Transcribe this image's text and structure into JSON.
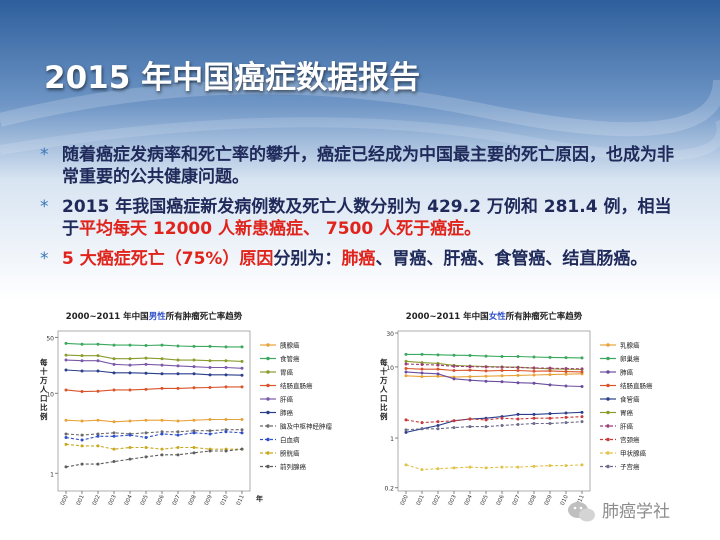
{
  "slide": {
    "title": "2015 年中国癌症数据报告",
    "bullets": [
      {
        "star": "*",
        "segments": [
          {
            "text": "随着癌症发病率和死亡率的攀升，癌症已经成为中国最主要的死亡原因，也成为非常重要的公共健康问题。",
            "red": false
          }
        ]
      },
      {
        "star": "*",
        "segments": [
          {
            "text": "2015 年我国癌症新发病例数及死亡人数分别为 429.2 万例和 281.4 例，相当于",
            "red": false
          },
          {
            "text": "平均每天 12000 人新患癌症、 7500 人死于癌症。",
            "red": true
          }
        ]
      },
      {
        "star": "*",
        "segments": [
          {
            "text": "5 大癌症死亡（75%）原因",
            "red": true
          },
          {
            "text": "分别为：",
            "red": false
          },
          {
            "text": "肺癌",
            "red": true
          },
          {
            "text": "、胃癌、肝癌、食管癌、结直肠癌。",
            "red": false
          }
        ]
      }
    ]
  },
  "watermark": {
    "text": "肺癌学社"
  },
  "colors": {
    "bg_top": "#2e5f9c",
    "bg_bottom": "#ffffff",
    "text": "#1f2a5a",
    "accent": "#e0231b",
    "star": "#3a76b8"
  },
  "chart_data": [
    {
      "type": "line",
      "title_pre": "2000~2011 年中国",
      "title_em": "男性",
      "title_post": "所有肿瘤死亡率趋势",
      "ylabel": "每十万人口比例",
      "xlabel": "年",
      "y_scale": "log",
      "yticks": [
        1,
        10,
        50
      ],
      "ylim": [
        0.6,
        60
      ],
      "x": [
        "2000",
        "2001",
        "2002",
        "2003",
        "2004",
        "2005",
        "2006",
        "2007",
        "2008",
        "2009",
        "2010",
        "2011"
      ],
      "series": [
        {
          "name": "胰腺癌",
          "color": "#e8a23a",
          "dash": false,
          "values": [
            4.6,
            4.5,
            4.6,
            4.4,
            4.5,
            4.6,
            4.6,
            4.5,
            4.6,
            4.7,
            4.7,
            4.7
          ]
        },
        {
          "name": "食管癌",
          "color": "#3aa85e",
          "dash": false,
          "values": [
            42,
            41,
            41,
            40,
            40,
            39.5,
            40,
            39,
            38.5,
            38.5,
            38,
            38
          ]
        },
        {
          "name": "胃癌",
          "color": "#8a9c2e",
          "dash": false,
          "values": [
            30,
            29.5,
            29.5,
            27,
            27,
            27.5,
            27,
            26,
            26,
            25.5,
            25.5,
            25
          ]
        },
        {
          "name": "结肠直肠癌",
          "color": "#d9542b",
          "dash": false,
          "values": [
            11,
            10.5,
            10.6,
            11,
            11,
            11.2,
            11.5,
            11.5,
            11.7,
            11.8,
            12,
            12
          ]
        },
        {
          "name": "肝癌",
          "color": "#7a5aa8",
          "dash": false,
          "values": [
            26,
            25.5,
            25.5,
            23,
            22.5,
            23,
            22.5,
            22,
            21.5,
            21,
            21,
            20.5
          ]
        },
        {
          "name": "肺癌",
          "color": "#2a3e8c",
          "dash": false,
          "values": [
            19.5,
            19,
            19,
            18,
            18,
            17.8,
            17.5,
            17.5,
            17.5,
            17,
            17,
            16.8
          ]
        },
        {
          "name": "脑及中枢神经肿瘤",
          "color": "#6b6b6b",
          "dash": true,
          "values": [
            3.1,
            3.0,
            3.1,
            3.2,
            3.1,
            3.2,
            3.3,
            3.3,
            3.4,
            3.4,
            3.5,
            3.5
          ]
        },
        {
          "name": "白血病",
          "color": "#3050c8",
          "dash": true,
          "values": [
            2.8,
            2.6,
            2.9,
            2.9,
            3.0,
            2.8,
            3.1,
            3.0,
            3.2,
            3.1,
            3.3,
            3.2
          ]
        },
        {
          "name": "膀胱癌",
          "color": "#c8a81e",
          "dash": true,
          "values": [
            2.3,
            2.2,
            2.2,
            2.0,
            2.1,
            2.1,
            2.0,
            2.1,
            2.1,
            2.0,
            2.0,
            2.0
          ]
        },
        {
          "name": "前列腺癌",
          "color": "#5e5e5e",
          "dash": true,
          "values": [
            1.2,
            1.3,
            1.3,
            1.4,
            1.5,
            1.6,
            1.7,
            1.7,
            1.8,
            1.9,
            1.9,
            2.0
          ]
        }
      ]
    },
    {
      "type": "line",
      "title_pre": "2000~2011 年中国",
      "title_em": "女性",
      "title_post": "所有肿瘤死亡率趋势",
      "ylabel": "每十万人口比例",
      "xlabel": "",
      "y_scale": "log",
      "yticks": [
        0.2,
        1,
        10,
        30
      ],
      "ylim": [
        0.18,
        32
      ],
      "x": [
        "2000",
        "2001",
        "2002",
        "2003",
        "2004",
        "2005",
        "2006",
        "2007",
        "2008",
        "2009",
        "2010",
        "2011"
      ],
      "series": [
        {
          "name": "乳腺癌",
          "color": "#e8a23a",
          "dash": false,
          "values": [
            7.5,
            7.3,
            7.4,
            7.2,
            7.3,
            7.4,
            7.5,
            7.6,
            7.7,
            7.8,
            7.9,
            8.0
          ]
        },
        {
          "name": "卵巢癌",
          "color": "#3aa85e",
          "dash": false,
          "values": [
            15,
            15,
            14.8,
            14.6,
            14.5,
            14.2,
            14,
            14,
            13.8,
            13.6,
            13.5,
            13.4
          ]
        },
        {
          "name": "肺癌",
          "color": "#6b4ea0",
          "dash": false,
          "values": [
            8.5,
            8.2,
            8.0,
            6.8,
            6.5,
            6.3,
            6.2,
            6.0,
            5.9,
            5.6,
            5.4,
            5.3
          ]
        },
        {
          "name": "结肠直肠癌",
          "color": "#d9542b",
          "dash": false,
          "values": [
            9.5,
            9.3,
            9.3,
            8.9,
            9.0,
            8.8,
            8.9,
            8.9,
            8.7,
            8.8,
            8.6,
            8.5
          ]
        },
        {
          "name": "食管癌",
          "color": "#2a3e8c",
          "dash": false,
          "values": [
            1.2,
            1.35,
            1.5,
            1.75,
            1.85,
            1.9,
            2.0,
            2.15,
            2.15,
            2.2,
            2.25,
            2.3
          ]
        },
        {
          "name": "胃癌",
          "color": "#8a9c2e",
          "dash": false,
          "values": [
            12,
            11.5,
            11.2,
            10.5,
            10.3,
            10.1,
            10,
            9.9,
            9.6,
            9.4,
            9.3,
            9.2
          ]
        },
        {
          "name": "肝癌",
          "color": "#9d3d7a",
          "dash": true,
          "values": [
            11,
            10.8,
            10.6,
            10.2,
            10.1,
            10.0,
            9.9,
            9.8,
            9.7,
            9.6,
            9.5,
            9.4
          ]
        },
        {
          "name": "宫颈癌",
          "color": "#c83a3a",
          "dash": true,
          "values": [
            1.8,
            1.65,
            1.7,
            1.75,
            1.85,
            1.8,
            1.9,
            1.85,
            1.9,
            1.9,
            1.95,
            2.0
          ]
        },
        {
          "name": "甲状腺癌",
          "color": "#e0c24a",
          "dash": true,
          "values": [
            0.42,
            0.36,
            0.37,
            0.38,
            0.39,
            0.38,
            0.39,
            0.39,
            0.4,
            0.41,
            0.41,
            0.42
          ]
        },
        {
          "name": "子宫癌",
          "color": "#6b6b8a",
          "dash": true,
          "values": [
            1.3,
            1.35,
            1.35,
            1.4,
            1.45,
            1.45,
            1.5,
            1.55,
            1.6,
            1.6,
            1.65,
            1.7
          ]
        }
      ]
    }
  ]
}
